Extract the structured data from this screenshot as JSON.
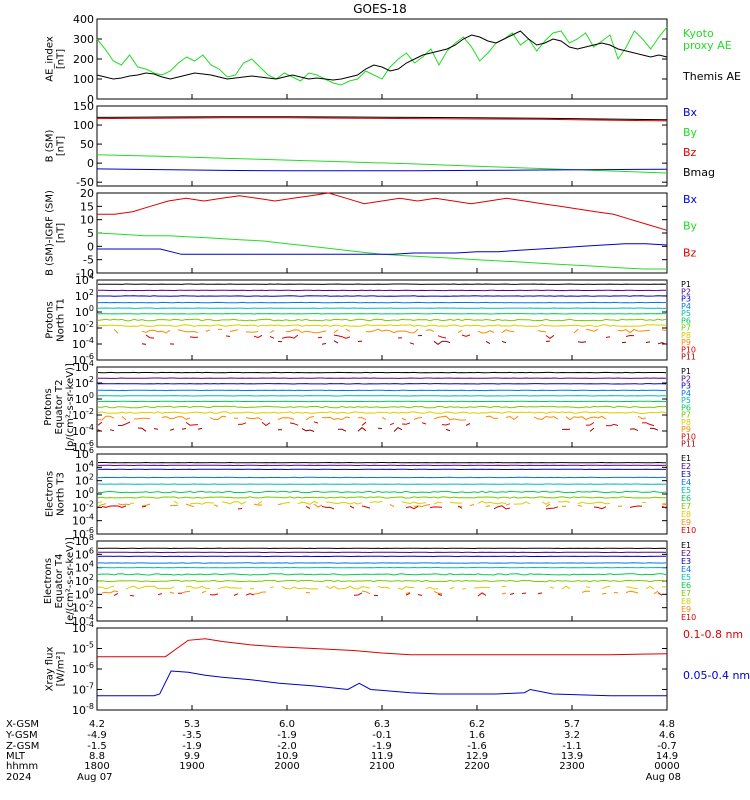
{
  "title": "GOES-18",
  "colors": {
    "black": "#000000",
    "red": "#dd0000",
    "green": "#22dd22",
    "blue": "#0000cc",
    "ch": [
      "#000000",
      "#5a0082",
      "#0000cc",
      "#0077ee",
      "#00bbbb",
      "#00cc55",
      "#77cc00",
      "#ddcc00",
      "#ff8800",
      "#dd0000",
      "#990000"
    ]
  },
  "chart_data": [
    {
      "type": "line",
      "panel": "ae",
      "ylabel": [
        "AE_index",
        "[nT]"
      ],
      "ylim": [
        0,
        400
      ],
      "yticks": [
        "0",
        "100",
        "200",
        "300",
        "400"
      ],
      "legend": [
        {
          "label": "Kyoto",
          "color": "green"
        },
        {
          "label": "proxy AE",
          "color": "green"
        },
        {
          "label": "Themis AE",
          "color": "black"
        }
      ],
      "series": [
        {
          "name": "Kyoto proxy AE",
          "color": "green",
          "values": [
            300,
            250,
            190,
            170,
            220,
            160,
            150,
            130,
            120,
            140,
            180,
            210,
            190,
            220,
            170,
            150,
            110,
            120,
            180,
            200,
            160,
            120,
            100,
            130,
            110,
            90,
            130,
            120,
            100,
            80,
            70,
            90,
            100,
            140,
            120,
            100,
            160,
            200,
            230,
            180,
            210,
            250,
            170,
            240,
            280,
            310,
            260,
            190,
            230,
            280,
            300,
            330,
            270,
            300,
            240,
            290,
            330,
            340,
            280,
            300,
            330,
            260,
            290,
            320,
            200,
            260,
            340,
            300,
            250,
            310,
            360
          ]
        },
        {
          "name": "Themis AE",
          "color": "black",
          "values": [
            120,
            110,
            100,
            105,
            115,
            120,
            130,
            125,
            110,
            100,
            110,
            120,
            130,
            125,
            120,
            110,
            100,
            105,
            110,
            115,
            110,
            105,
            100,
            110,
            120,
            110,
            100,
            105,
            100,
            95,
            100,
            110,
            120,
            150,
            170,
            160,
            140,
            150,
            180,
            200,
            220,
            230,
            240,
            250,
            270,
            300,
            320,
            310,
            290,
            280,
            300,
            320,
            340,
            300,
            270,
            280,
            300,
            290,
            260,
            250,
            260,
            270,
            280,
            270,
            250,
            240,
            230,
            220,
            210,
            220,
            210
          ]
        }
      ]
    },
    {
      "type": "line",
      "panel": "b",
      "ylabel": [
        "B (SM)",
        "[nT]"
      ],
      "ylim": [
        -60,
        150
      ],
      "yticks": [
        "-50",
        "0",
        "50",
        "100",
        "150"
      ],
      "yticks_at": [
        -50,
        0,
        50,
        100,
        150
      ],
      "legend": [
        {
          "label": "Bx",
          "color": "blue"
        },
        {
          "label": "By",
          "color": "green"
        },
        {
          "label": "Bz",
          "color": "red"
        },
        {
          "label": "Bmag",
          "color": "black"
        }
      ],
      "series": [
        {
          "name": "Bmag",
          "color": "black",
          "values": [
            120,
            121,
            122,
            122,
            121,
            120,
            119,
            118,
            116,
            114
          ]
        },
        {
          "name": "Bz",
          "color": "red",
          "values": [
            117,
            118,
            119,
            119,
            118,
            117,
            116,
            115,
            113,
            111
          ]
        },
        {
          "name": "By",
          "color": "green",
          "values": [
            22,
            18,
            13,
            8,
            3,
            -2,
            -8,
            -14,
            -20,
            -26
          ]
        },
        {
          "name": "Bx",
          "color": "blue",
          "values": [
            -15,
            -17,
            -19,
            -20,
            -20,
            -20,
            -19,
            -18,
            -17,
            -16
          ]
        }
      ]
    },
    {
      "type": "line",
      "panel": "db",
      "ylabel": [
        "B (SM)-IGRF (SM)",
        "[nT]"
      ],
      "ylim": [
        -10,
        20
      ],
      "yticks": [
        "-10",
        "-5",
        "0",
        "5",
        "10",
        "15",
        "20"
      ],
      "yticks_at": [
        -10,
        -5,
        0,
        5,
        10,
        15,
        20
      ],
      "legend": [
        {
          "label": "Bx",
          "color": "blue"
        },
        {
          "label": "By",
          "color": "green"
        },
        {
          "label": "Bz",
          "color": "red"
        }
      ],
      "series": [
        {
          "name": "Bz",
          "color": "red",
          "values": [
            12,
            12,
            13,
            15,
            17,
            18,
            17,
            18,
            19,
            18,
            17,
            18,
            19,
            20,
            18,
            16,
            17,
            18,
            17,
            18,
            17,
            16,
            17,
            18,
            17,
            16,
            15,
            14,
            13,
            12,
            10,
            8,
            6
          ]
        },
        {
          "name": "By",
          "color": "green",
          "values": [
            5,
            4.5,
            4,
            4,
            3.5,
            3,
            2.5,
            2,
            1,
            0,
            -1,
            -2,
            -3,
            -3.5,
            -4,
            -4.5,
            -5,
            -5.5,
            -6,
            -6.5,
            -7,
            -7.5,
            -8,
            -8.5,
            -8.5
          ]
        },
        {
          "name": "Bx",
          "color": "blue",
          "values": [
            -1,
            -1,
            -1,
            -1,
            -3,
            -3,
            -3,
            -3,
            -3,
            -3,
            -3,
            -3,
            -3,
            -3,
            -3,
            -2.5,
            -2.5,
            -2.5,
            -2,
            -2,
            -1.5,
            -1,
            -0.5,
            0,
            0.5,
            1,
            1,
            0.5
          ]
        }
      ]
    },
    {
      "type": "line",
      "panel": "p1",
      "log": true,
      "ylabel": [
        "Protons",
        "North T1"
      ],
      "ylim": [
        1e-06,
        10000.0
      ],
      "yticks": [
        "10-6",
        "10-4",
        "10-2",
        "100",
        "102",
        "104"
      ],
      "channels": [
        "P1",
        "P2",
        "P3",
        "P4",
        "P5",
        "P6",
        "P7",
        "P8",
        "P9",
        "P10",
        "P11"
      ],
      "levels": [
        3000,
        500,
        100,
        15,
        3,
        0.6,
        0.1,
        0.02,
        0.004,
        0.0008,
        0.00015
      ]
    },
    {
      "type": "line",
      "panel": "p2",
      "log": true,
      "ylabel": [
        "Protons",
        "Equator T2",
        "[p/(cm²-s-sr-keV)]"
      ],
      "ylim": [
        1e-06,
        10000.0
      ],
      "yticks": [
        "10-6",
        "10-4",
        "10-2",
        "100",
        "102",
        "104"
      ],
      "channels": [
        "P1",
        "P2",
        "P3",
        "P4",
        "P5",
        "P6",
        "P7",
        "P8",
        "P9",
        "P10",
        "P11"
      ],
      "levels": [
        2000,
        400,
        80,
        12,
        2.5,
        0.5,
        0.1,
        0.02,
        0.004,
        0.0008,
        0.00015
      ]
    },
    {
      "type": "line",
      "panel": "e1",
      "log": true,
      "ylabel": [
        "Electrons",
        "North T3"
      ],
      "ylim": [
        1e-06,
        1000000.0
      ],
      "yticks": [
        "10-6",
        "10-4",
        "10-2",
        "100",
        "102",
        "104",
        "106"
      ],
      "channels": [
        "E1",
        "E2",
        "E3",
        "E4",
        "E5",
        "E6",
        "E7",
        "E8",
        "E9",
        "E10"
      ],
      "levels": [
        50000,
        20000,
        5000,
        300,
        30,
        2,
        0.3,
        0.05,
        0.02,
        0.01
      ]
    },
    {
      "type": "line",
      "panel": "e2",
      "log": true,
      "ylabel": [
        "Electrons",
        "Equator T4",
        "[e/(cm²-s-sr-keV)]"
      ],
      "ylim": [
        1e-06,
        1000000.0
      ],
      "yticks": [
        "10-4",
        "10-2",
        "100",
        "102",
        "104",
        "106",
        "108"
      ],
      "channels": [
        "E1",
        "E2",
        "E3",
        "E4",
        "E5",
        "E6",
        "E7",
        "E8",
        "E9",
        "E10"
      ],
      "levels": [
        80000,
        20000,
        5000,
        500,
        100,
        10,
        1,
        0.1,
        0.02,
        0.01
      ]
    },
    {
      "type": "line",
      "panel": "xray",
      "log": true,
      "ylabel": [
        "Xray flux",
        "[W/m²]"
      ],
      "ylim": [
        1e-08,
        0.0001
      ],
      "yticks": [
        "10-8",
        "10-7",
        "10-6",
        "10-5",
        "10-4"
      ],
      "legend": [
        {
          "label": "0.1-0.8 nm",
          "color": "red"
        },
        {
          "label": "0.05-0.4 nm",
          "color": "blue"
        }
      ],
      "series": [
        {
          "name": "0.1-0.8 nm",
          "color": "red",
          "t": [
            0,
            0.1,
            0.12,
            0.14,
            0.16,
            0.19,
            0.22,
            0.27,
            0.32,
            0.38,
            0.45,
            0.5,
            0.55,
            0.6,
            0.7,
            0.8,
            0.9,
            1.0
          ],
          "values": [
            4e-06,
            4e-06,
            4e-06,
            1e-05,
            2.5e-05,
            3e-05,
            2.2e-05,
            1.5e-05,
            1.2e-05,
            1e-05,
            8e-06,
            6e-06,
            5e-06,
            5e-06,
            5e-06,
            5e-06,
            5e-06,
            5.5e-06
          ]
        },
        {
          "name": "0.05-0.4 nm",
          "color": "blue",
          "t": [
            0,
            0.1,
            0.11,
            0.13,
            0.16,
            0.19,
            0.22,
            0.27,
            0.32,
            0.38,
            0.44,
            0.46,
            0.48,
            0.5,
            0.55,
            0.6,
            0.7,
            0.75,
            0.76,
            0.8,
            0.9,
            1.0
          ],
          "values": [
            5e-08,
            5e-08,
            6e-08,
            8e-07,
            7e-07,
            5e-07,
            4e-07,
            3e-07,
            2e-07,
            1.5e-07,
            1e-07,
            2e-07,
            1e-07,
            9e-08,
            7e-08,
            6e-08,
            6e-08,
            7e-08,
            1e-07,
            6e-08,
            5e-08,
            5e-08
          ]
        }
      ]
    }
  ],
  "x_axis": {
    "row_labels": [
      "X-GSM",
      "Y-GSM",
      "Z-GSM",
      "MLT",
      "hhmm",
      "2024"
    ],
    "columns": [
      {
        "rows": [
          "4.2",
          "-4.9",
          "-1.5",
          "8.8",
          "1800",
          "Aug 07"
        ]
      },
      {
        "rows": [
          "5.3",
          "-3.5",
          "-1.9",
          "9.9",
          "1900",
          ""
        ]
      },
      {
        "rows": [
          "6.0",
          "-1.9",
          "-2.0",
          "10.9",
          "2000",
          ""
        ]
      },
      {
        "rows": [
          "6.3",
          "-0.1",
          "-1.9",
          "11.9",
          "2100",
          ""
        ]
      },
      {
        "rows": [
          "6.2",
          "1.6",
          "-1.6",
          "12.9",
          "2200",
          ""
        ]
      },
      {
        "rows": [
          "5.7",
          "3.2",
          "-1.1",
          "13.9",
          "2300",
          ""
        ]
      },
      {
        "rows": [
          "4.8",
          "4.6",
          "-0.7",
          "14.9",
          "0000",
          "Aug 08"
        ]
      }
    ]
  }
}
